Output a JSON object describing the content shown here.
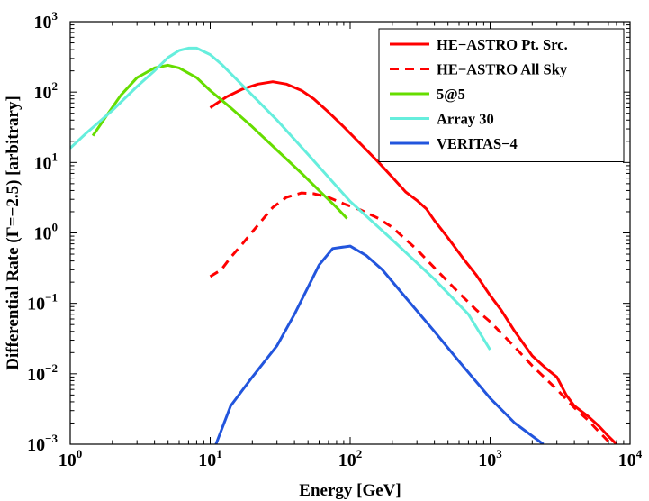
{
  "chart_data": {
    "type": "line",
    "xlabel": "Energy [GeV]",
    "ylabel": "Differential Rate (Γ=−2.5) [arbitrary]",
    "xscale": "log",
    "yscale": "log",
    "xlim": [
      1,
      10000
    ],
    "ylim": [
      0.001,
      1000
    ],
    "x_ticks": [
      {
        "base": "10",
        "exp": "0",
        "value": 1
      },
      {
        "base": "10",
        "exp": "1",
        "value": 10
      },
      {
        "base": "10",
        "exp": "2",
        "value": 100
      },
      {
        "base": "10",
        "exp": "3",
        "value": 1000
      },
      {
        "base": "10",
        "exp": "4",
        "value": 10000
      }
    ],
    "y_ticks": [
      {
        "base": "10",
        "exp": "−3",
        "value": 0.001
      },
      {
        "base": "10",
        "exp": "−2",
        "value": 0.01
      },
      {
        "base": "10",
        "exp": "−1",
        "value": 0.1
      },
      {
        "base": "10",
        "exp": "0",
        "value": 1
      },
      {
        "base": "10",
        "exp": "1",
        "value": 10
      },
      {
        "base": "10",
        "exp": "2",
        "value": 100
      },
      {
        "base": "10",
        "exp": "3",
        "value": 1000
      }
    ],
    "legend_position": "top-right",
    "grid": false,
    "series": [
      {
        "name": "HE−ASTRO Pt. Src.",
        "color": "#ff0000",
        "dash": "solid",
        "points": [
          [
            10,
            60
          ],
          [
            13,
            85
          ],
          [
            17,
            110
          ],
          [
            22,
            130
          ],
          [
            28,
            140
          ],
          [
            35,
            130
          ],
          [
            45,
            105
          ],
          [
            55,
            80
          ],
          [
            70,
            52
          ],
          [
            90,
            32
          ],
          [
            120,
            18
          ],
          [
            160,
            10
          ],
          [
            200,
            6.2
          ],
          [
            250,
            3.8
          ],
          [
            300,
            2.9
          ],
          [
            350,
            2.2
          ],
          [
            400,
            1.5
          ],
          [
            500,
            0.85
          ],
          [
            650,
            0.42
          ],
          [
            800,
            0.25
          ],
          [
            1000,
            0.13
          ],
          [
            1200,
            0.08
          ],
          [
            1500,
            0.04
          ],
          [
            2000,
            0.018
          ],
          [
            2500,
            0.012
          ],
          [
            3000,
            0.009
          ],
          [
            3500,
            0.005
          ],
          [
            4000,
            0.0035
          ],
          [
            5000,
            0.0025
          ],
          [
            6000,
            0.0018
          ],
          [
            7000,
            0.0013
          ],
          [
            8000,
            0.001
          ]
        ]
      },
      {
        "name": "HE−ASTRO All Sky",
        "color": "#ff0000",
        "dash": "dashed",
        "points": [
          [
            10,
            0.24
          ],
          [
            12,
            0.3
          ],
          [
            14,
            0.45
          ],
          [
            17,
            0.7
          ],
          [
            22,
            1.3
          ],
          [
            28,
            2.3
          ],
          [
            35,
            3.2
          ],
          [
            45,
            3.7
          ],
          [
            55,
            3.6
          ],
          [
            70,
            3.2
          ],
          [
            90,
            2.6
          ],
          [
            120,
            2.1
          ],
          [
            160,
            1.6
          ],
          [
            200,
            1.2
          ],
          [
            300,
            0.58
          ],
          [
            400,
            0.32
          ],
          [
            600,
            0.14
          ],
          [
            800,
            0.08
          ],
          [
            1000,
            0.055
          ],
          [
            1500,
            0.024
          ],
          [
            2000,
            0.013
          ],
          [
            3000,
            0.006
          ],
          [
            4000,
            0.0033
          ],
          [
            5000,
            0.0022
          ],
          [
            6000,
            0.0015
          ],
          [
            7000,
            0.0011
          ]
        ]
      },
      {
        "name": "5@5",
        "color": "#66dd00",
        "dash": "solid",
        "points": [
          [
            1.45,
            24
          ],
          [
            1.8,
            45
          ],
          [
            2.3,
            90
          ],
          [
            3,
            160
          ],
          [
            4,
            220
          ],
          [
            5,
            240
          ],
          [
            6,
            220
          ],
          [
            8,
            160
          ],
          [
            10,
            105
          ],
          [
            14,
            60
          ],
          [
            20,
            32
          ],
          [
            30,
            15
          ],
          [
            45,
            7
          ],
          [
            60,
            4
          ],
          [
            80,
            2.3
          ],
          [
            95,
            1.6
          ]
        ]
      },
      {
        "name": "Array 30",
        "color": "#66eedd",
        "dash": "solid",
        "points": [
          [
            1,
            16
          ],
          [
            1.3,
            26
          ],
          [
            2,
            55
          ],
          [
            3,
            120
          ],
          [
            4,
            200
          ],
          [
            5,
            310
          ],
          [
            6,
            390
          ],
          [
            7,
            420
          ],
          [
            8,
            420
          ],
          [
            10,
            340
          ],
          [
            12,
            250
          ],
          [
            15,
            160
          ],
          [
            20,
            90
          ],
          [
            30,
            40
          ],
          [
            50,
            13
          ],
          [
            100,
            2.8
          ],
          [
            200,
            0.8
          ],
          [
            400,
            0.22
          ],
          [
            700,
            0.07
          ],
          [
            1000,
            0.022
          ]
        ]
      },
      {
        "name": "VERITAS−4",
        "color": "#2255dd",
        "dash": "solid",
        "points": [
          [
            11,
            0.001
          ],
          [
            14,
            0.0035
          ],
          [
            20,
            0.009
          ],
          [
            30,
            0.025
          ],
          [
            40,
            0.07
          ],
          [
            50,
            0.17
          ],
          [
            60,
            0.35
          ],
          [
            75,
            0.6
          ],
          [
            100,
            0.65
          ],
          [
            130,
            0.48
          ],
          [
            170,
            0.3
          ],
          [
            250,
            0.12
          ],
          [
            400,
            0.04
          ],
          [
            600,
            0.015
          ],
          [
            1000,
            0.0045
          ],
          [
            1500,
            0.002
          ],
          [
            2400,
            0.001
          ]
        ]
      }
    ]
  }
}
